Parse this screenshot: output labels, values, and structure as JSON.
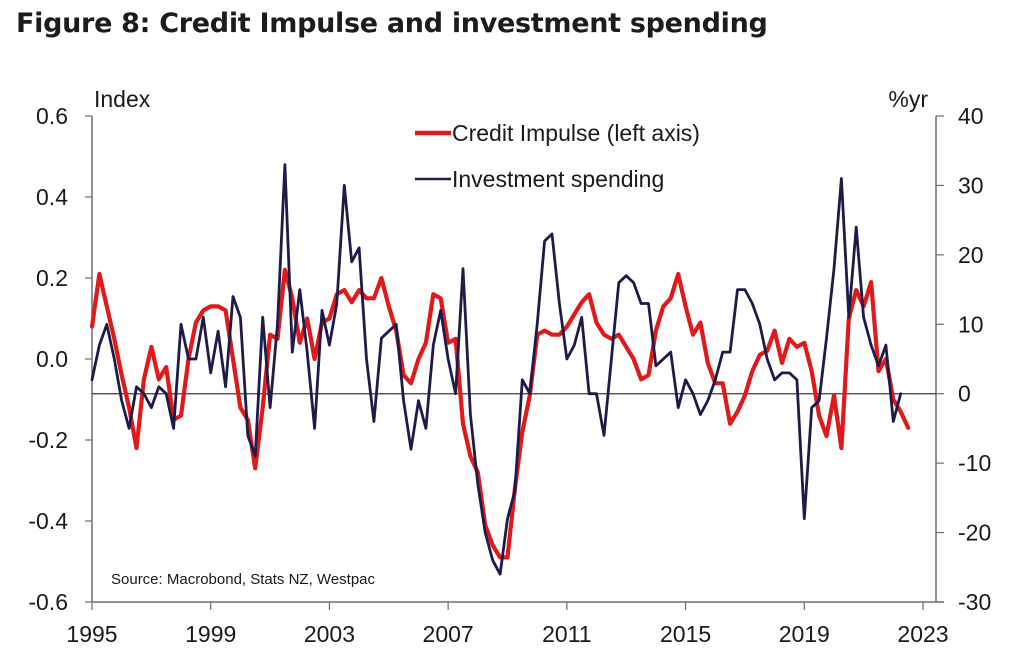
{
  "title": "Figure 8: Credit Impulse and investment spending",
  "chart_data": {
    "type": "line",
    "title": "Figure 8: Credit Impulse and investment spending",
    "xlabel": "",
    "ylabel_left": "Index",
    "ylabel_right": "%yr",
    "x_ticks": [
      "1995",
      "1999",
      "2003",
      "2007",
      "2011",
      "2015",
      "2019",
      "2023"
    ],
    "xlim": [
      1995,
      2023.4
    ],
    "y_left_ticks": [
      "0.6",
      "0.4",
      "0.2",
      "0.0",
      "-0.2",
      "-0.4",
      "-0.6"
    ],
    "y_left_lim": [
      -0.6,
      0.6
    ],
    "y_right_ticks": [
      "40",
      "30",
      "20",
      "10",
      "0",
      "-10",
      "-20",
      "-30"
    ],
    "y_right_lim": [
      -30,
      40
    ],
    "zero_line_axis": "right",
    "grid": false,
    "legend_position": "top-center",
    "frequency": "quarterly",
    "start": "1995Q1",
    "series": [
      {
        "name": "Credit Impulse (left axis)",
        "axis": "left",
        "color": "#e01a1a",
        "values": [
          0.08,
          0.21,
          0.13,
          0.05,
          -0.04,
          -0.12,
          -0.22,
          -0.05,
          0.03,
          -0.05,
          -0.02,
          -0.15,
          -0.14,
          0.0,
          0.09,
          0.12,
          0.13,
          0.13,
          0.12,
          0.0,
          -0.12,
          -0.15,
          -0.27,
          -0.12,
          0.06,
          0.05,
          0.22,
          0.15,
          0.04,
          0.1,
          0.0,
          0.09,
          0.1,
          0.16,
          0.17,
          0.14,
          0.17,
          0.15,
          0.15,
          0.2,
          0.13,
          0.07,
          -0.04,
          -0.06,
          0.0,
          0.04,
          0.16,
          0.15,
          0.04,
          0.05,
          -0.16,
          -0.24,
          -0.28,
          -0.41,
          -0.46,
          -0.49,
          -0.49,
          -0.32,
          -0.18,
          -0.09,
          0.06,
          0.07,
          0.06,
          0.06,
          0.08,
          0.11,
          0.14,
          0.16,
          0.09,
          0.06,
          0.05,
          0.06,
          0.03,
          0.0,
          -0.05,
          -0.04,
          0.07,
          0.13,
          0.15,
          0.21,
          0.13,
          0.06,
          0.09,
          -0.01,
          -0.06,
          -0.06,
          -0.16,
          -0.13,
          -0.09,
          -0.03,
          0.01,
          0.02,
          0.07,
          -0.01,
          0.05,
          0.03,
          0.04,
          -0.03,
          -0.14,
          -0.19,
          -0.09,
          -0.22,
          0.1,
          0.17,
          0.13,
          0.19,
          -0.03,
          0.0,
          -0.1,
          -0.13,
          -0.17
        ]
      },
      {
        "name": "Investment spending",
        "axis": "right",
        "color": "#1c1b4a",
        "values": [
          2,
          7,
          10,
          5,
          -1,
          -5,
          1,
          0,
          -2,
          1,
          0,
          -5,
          10,
          5,
          5,
          11,
          3,
          9,
          1,
          14,
          11,
          -6,
          -9,
          11,
          -2,
          10,
          33,
          6,
          15,
          6,
          -5,
          12,
          7,
          13,
          30,
          19,
          21,
          5,
          -4,
          8,
          9,
          10,
          -1,
          -8,
          -1,
          -5,
          7,
          12,
          5,
          0,
          18,
          -3,
          -13,
          -20,
          -24,
          -26,
          -18,
          -14,
          2,
          0,
          10,
          22,
          23,
          13,
          5,
          7,
          11,
          0,
          0,
          -6,
          5,
          16,
          17,
          16,
          13,
          13,
          4,
          5,
          6,
          -2,
          2,
          0,
          -3,
          -1,
          2,
          6,
          6,
          15,
          15,
          13,
          10,
          5,
          2,
          3,
          3,
          2,
          -18,
          -2,
          -1,
          8,
          18,
          31,
          11,
          24,
          11,
          7,
          4,
          7,
          -4,
          0
        ]
      }
    ],
    "annotations": [
      "Source: Macrobond, Stats NZ, Westpac"
    ]
  }
}
